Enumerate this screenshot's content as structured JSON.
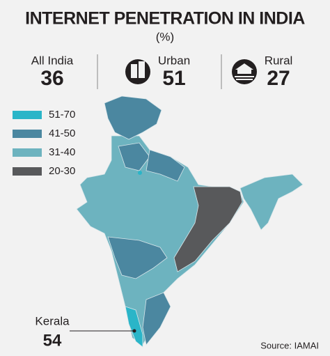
{
  "header": {
    "title": "INTERNET PENETRATION IN INDIA",
    "unit": "(%)"
  },
  "stats": [
    {
      "label": "All India",
      "value": 36
    },
    {
      "label": "Urban",
      "value": 51
    },
    {
      "label": "Rural",
      "value": 27
    }
  ],
  "legend": [
    {
      "label": "51-70",
      "color": "#2ab5c8"
    },
    {
      "label": "41-50",
      "color": "#4b87a0"
    },
    {
      "label": "31-40",
      "color": "#6db3bf"
    },
    {
      "label": "20-30",
      "color": "#58595b"
    }
  ],
  "callout": {
    "label": "Kerala",
    "value": 54
  },
  "source": "Source: IAMAI"
}
